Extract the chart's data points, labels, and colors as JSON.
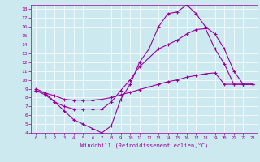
{
  "xlabel": "Windchill (Refroidissement éolien,°C)",
  "bg_color": "#cce9f0",
  "line_color": "#990099",
  "grid_color": "#ffffff",
  "ylim": [
    4,
    18.5
  ],
  "xlim": [
    -0.5,
    23.5
  ],
  "yticks": [
    4,
    5,
    6,
    7,
    8,
    9,
    10,
    11,
    12,
    13,
    14,
    15,
    16,
    17,
    18
  ],
  "xticks": [
    0,
    1,
    2,
    3,
    4,
    5,
    6,
    7,
    8,
    9,
    10,
    11,
    12,
    13,
    14,
    15,
    16,
    17,
    18,
    19,
    20,
    21,
    22,
    23
  ],
  "line1_x": [
    0,
    1,
    2,
    3,
    4,
    5,
    6,
    7,
    8,
    9,
    10,
    11,
    12,
    13,
    14,
    15,
    16,
    17,
    18,
    19,
    20,
    21,
    22,
    23
  ],
  "line1_y": [
    9.0,
    8.5,
    7.5,
    6.5,
    5.5,
    5.0,
    4.5,
    4.0,
    4.8,
    7.8,
    9.5,
    12.0,
    13.5,
    16.0,
    17.5,
    17.7,
    18.5,
    17.5,
    16.0,
    15.2,
    13.5,
    11.0,
    9.5,
    9.5
  ],
  "line2_x": [
    0,
    1,
    2,
    3,
    4,
    5,
    6,
    7,
    8,
    9,
    10,
    11,
    12,
    13,
    14,
    15,
    16,
    17,
    18,
    19,
    20,
    21,
    22,
    23
  ],
  "line2_y": [
    8.8,
    8.3,
    7.5,
    7.0,
    6.7,
    6.7,
    6.7,
    6.7,
    7.5,
    8.8,
    10.0,
    11.5,
    12.5,
    13.5,
    14.0,
    14.5,
    15.2,
    15.7,
    15.8,
    13.5,
    11.8,
    9.5,
    9.5,
    9.5
  ],
  "line3_x": [
    0,
    1,
    2,
    3,
    4,
    5,
    6,
    7,
    8,
    9,
    10,
    11,
    12,
    13,
    14,
    15,
    16,
    17,
    18,
    19,
    20,
    21,
    22,
    23
  ],
  "line3_y": [
    8.8,
    8.5,
    8.2,
    7.8,
    7.7,
    7.7,
    7.7,
    7.8,
    8.0,
    8.3,
    8.6,
    8.9,
    9.2,
    9.5,
    9.8,
    10.0,
    10.3,
    10.5,
    10.7,
    10.8,
    9.5,
    9.5,
    9.5,
    9.5
  ]
}
